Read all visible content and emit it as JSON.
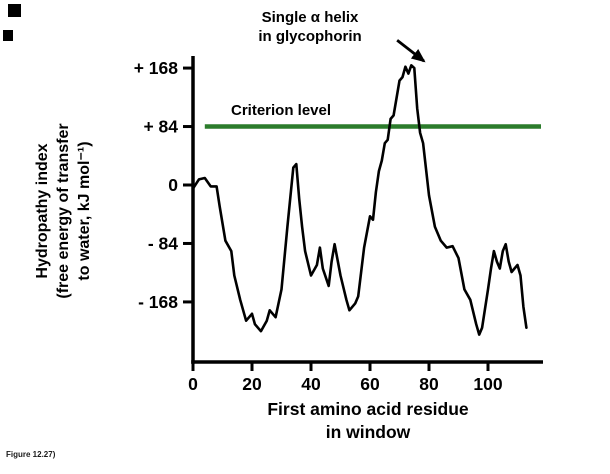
{
  "figure": {
    "caption": "Figure 12.27)"
  },
  "chart_data": {
    "type": "line",
    "title": "",
    "xlabel": "First amino acid residue in window",
    "xlabel_lines": [
      "First amino acid residue",
      "in window"
    ],
    "ylabel": "Hydropathy index (free energy of transfer to water, kJ mol⁻¹)",
    "ylabel_lines": [
      "Hydropathy index",
      "(free energy of transfer",
      "to water, kJ mol⁻¹)"
    ],
    "x_ticks": [
      0,
      20,
      40,
      60,
      80,
      100
    ],
    "y_ticks": [
      168,
      84,
      0,
      -84,
      -168
    ],
    "y_tick_labels": [
      "+ 168",
      "+ 84",
      "0",
      "- 84",
      "- 168"
    ],
    "xlim": [
      0,
      118
    ],
    "ylim": [
      -255,
      185
    ],
    "grid": false,
    "legend": false,
    "criterion": {
      "label": "Criterion level",
      "value": 84,
      "color": "#2c7c2c"
    },
    "annotation": {
      "text_lines": [
        "Single α helix",
        "in glycophorin"
      ],
      "points_to": {
        "x": 74,
        "y": 172
      },
      "arrow": {
        "x1": 69.2,
        "y1": 208,
        "x2": 78.3,
        "y2": 178
      }
    },
    "series": [
      {
        "name": "Hydropathy index",
        "color": "#000000",
        "x": [
          0,
          2,
          4,
          6,
          8,
          9,
          11,
          13,
          14,
          16,
          18,
          20,
          21,
          23,
          25,
          26,
          28,
          30,
          32,
          34,
          35,
          36,
          37,
          38,
          40,
          42,
          43,
          44,
          46,
          47,
          48,
          50,
          52,
          53,
          55,
          56,
          58,
          60,
          61,
          62,
          63,
          64,
          65,
          66,
          67,
          68,
          70,
          71,
          72,
          73,
          74,
          75,
          76,
          77,
          78,
          80,
          82,
          84,
          86,
          88,
          90,
          92,
          94,
          96,
          97,
          98,
          100,
          101,
          102,
          103,
          104,
          105,
          106,
          107,
          108,
          109,
          110,
          111,
          112,
          113
        ],
        "y": [
          -5,
          8,
          10,
          -2,
          -2,
          -30,
          -80,
          -95,
          -130,
          -165,
          -195,
          -185,
          -200,
          -210,
          -195,
          -180,
          -190,
          -150,
          -60,
          25,
          30,
          -20,
          -60,
          -95,
          -130,
          -115,
          -90,
          -120,
          -145,
          -110,
          -85,
          -130,
          -165,
          -180,
          -170,
          -160,
          -90,
          -45,
          -50,
          -10,
          20,
          35,
          60,
          65,
          95,
          100,
          150,
          155,
          170,
          160,
          172,
          168,
          110,
          75,
          60,
          -15,
          -60,
          -80,
          -90,
          -88,
          -105,
          -150,
          -165,
          -200,
          -215,
          -205,
          -150,
          -120,
          -95,
          -110,
          -120,
          -95,
          -85,
          -110,
          -125,
          -120,
          -115,
          -130,
          -175,
          -205
        ]
      }
    ]
  }
}
